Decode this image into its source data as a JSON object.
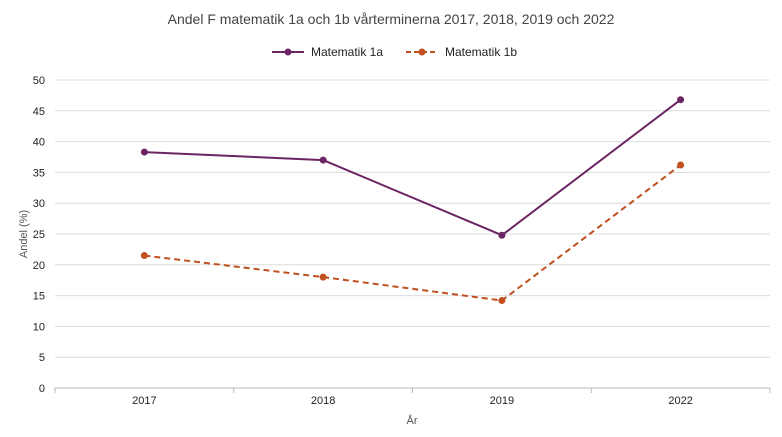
{
  "chart_data": {
    "type": "line",
    "title": "Andel F matematik 1a och 1b vårterminerna 2017, 2018, 2019 och 2022",
    "xlabel": "År",
    "ylabel": "Andel (%)",
    "categories": [
      "2017",
      "2018",
      "2019",
      "2022"
    ],
    "ylim": [
      0,
      50
    ],
    "yticks": [
      0,
      5,
      10,
      15,
      20,
      25,
      30,
      35,
      40,
      45,
      50
    ],
    "grid": true,
    "legend": "top-center",
    "series": [
      {
        "name": "Matematik 1a",
        "values": [
          38.3,
          37.0,
          24.8,
          46.8
        ],
        "color": "#6b2564",
        "dash": "solid"
      },
      {
        "name": "Matematik 1b",
        "values": [
          21.5,
          18.0,
          14.2,
          36.2
        ],
        "color": "#c0501f",
        "dash": "dashed"
      }
    ]
  }
}
